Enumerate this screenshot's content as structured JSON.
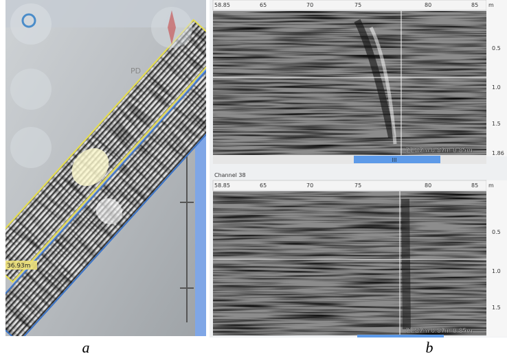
{
  "panel_a": {
    "caption": "a",
    "distance_readout": "36.93m",
    "overlay_text": "PD"
  },
  "panel_b": {
    "caption": "b",
    "radargrams": [
      {
        "x_ticks": [
          "58.85",
          "65",
          "70",
          "75",
          "80",
          "85"
        ],
        "x_unit": "m",
        "depth_ticks": [
          "0.5",
          "1.0",
          "1.5",
          "1.86"
        ],
        "readout": "77.87m 0.87m 0.85m",
        "scroll_label": "III"
      },
      {
        "channel": "Channel 38",
        "x_ticks": [
          "58.85",
          "65",
          "70",
          "75",
          "80",
          "85"
        ],
        "x_unit": "m",
        "depth_ticks": [
          "0.5",
          "1.0",
          "1.5"
        ],
        "readout": "77.87m 0.87m 0.85m"
      }
    ]
  }
}
